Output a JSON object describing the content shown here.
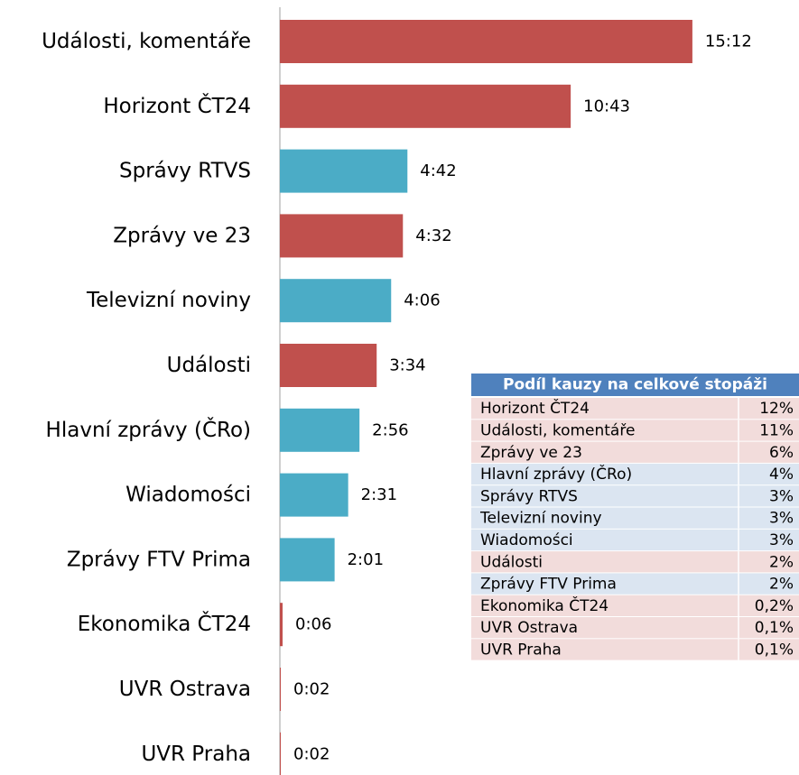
{
  "chart_data": {
    "type": "bar",
    "orientation": "horizontal",
    "categories": [
      "Události, komentáře",
      "Horizont ČT24",
      "Správy RTVS",
      "Zprávy ve 23",
      "Televizní noviny",
      "Události",
      "Hlavní zprávy (ČRo)",
      "Wiadomości",
      "Zprávy FTV Prima",
      "Ekonomika ČT24",
      "UVR Ostrava",
      "UVR Praha"
    ],
    "values": [
      912,
      643,
      282,
      272,
      246,
      214,
      176,
      151,
      121,
      6,
      2,
      2
    ],
    "value_labels": [
      "15:12",
      "10:43",
      "4:42",
      "4:32",
      "4:06",
      "3:34",
      "2:56",
      "2:31",
      "2:01",
      "0:06",
      "0:02",
      "0:02"
    ],
    "colors": [
      "#c0504d",
      "#c0504d",
      "#4bacc6",
      "#c0504d",
      "#4bacc6",
      "#c0504d",
      "#4bacc6",
      "#4bacc6",
      "#4bacc6",
      "#c0504d",
      "#c0504d",
      "#c0504d"
    ]
  },
  "table": {
    "title": "Podíl kauzy na celkové stopáži",
    "header_color": "#4f81bd",
    "rows": [
      [
        "Horizont ČT24",
        "12%"
      ],
      [
        "Události, komentáře",
        "11%"
      ],
      [
        "Zprávy ve 23",
        "6%"
      ],
      [
        "Hlavní zprávy (ČRo)",
        "4%"
      ],
      [
        "Správy RTVS",
        "3%"
      ],
      [
        "Televizní noviny",
        "3%"
      ],
      [
        "Wiadomości",
        "3%"
      ],
      [
        "Události",
        "2%"
      ],
      [
        "Zprávy FTV Prima",
        "2%"
      ],
      [
        "Ekonomika ČT24",
        "0,2%"
      ],
      [
        "UVR Ostrava",
        "0,1%"
      ],
      [
        "UVR  Praha",
        "0,1%"
      ]
    ],
    "row_colors": [
      "#f2dcdb",
      "#f2dcdb",
      "#f2dcdb",
      "#dbe5f1",
      "#dbe5f1",
      "#dbe5f1",
      "#dbe5f1",
      "#f2dcdb",
      "#dbe5f1",
      "#f2dcdb",
      "#f2dcdb",
      "#f2dcdb"
    ]
  }
}
